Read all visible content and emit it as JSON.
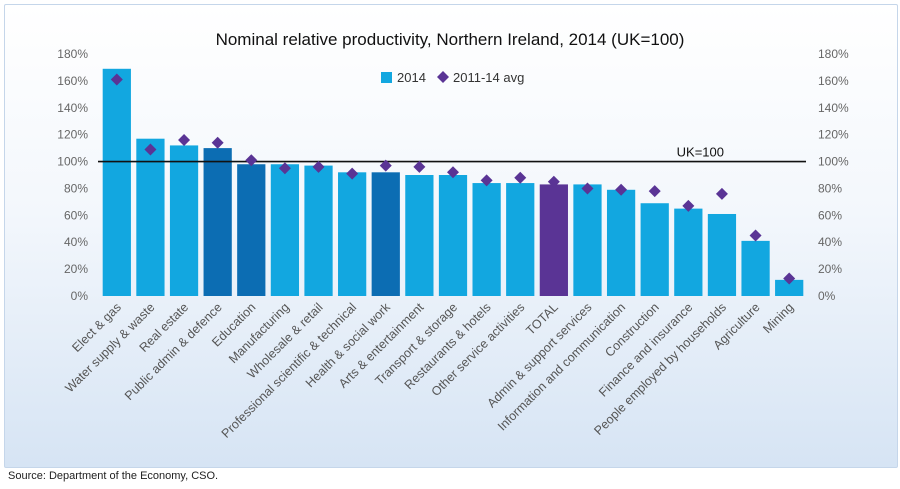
{
  "chart_data": {
    "type": "bar",
    "title": "Nominal relative productivity, Northern Ireland, 2014 (UK=100)",
    "categories": [
      "Elect & gas",
      "Water supply & waste",
      "Real estate",
      "Public admin & defence",
      "Education",
      "Manufacturing",
      "Wholesale & retail",
      "Professional scientific & technical",
      "Health & social work",
      "Arts & entertainment",
      "Transport & storage",
      "Restaurants & hotels",
      "Other service activities",
      "TOTAL",
      "Admin & support services",
      "Information and communication",
      "Construction",
      "Finance and insurance",
      "People employed by households",
      "Agriculture",
      "Mining"
    ],
    "series": [
      {
        "name": "2014",
        "kind": "bar",
        "values": [
          169,
          117,
          112,
          110,
          98,
          98,
          97,
          92,
          92,
          90,
          90,
          84,
          84,
          83,
          83,
          79,
          69,
          65,
          61,
          41,
          12
        ]
      },
      {
        "name": "2011-14 avg",
        "kind": "marker",
        "values": [
          161,
          109,
          116,
          114,
          101,
          95,
          96,
          91,
          97,
          96,
          92,
          86,
          88,
          85,
          80,
          79,
          78,
          67,
          76,
          45,
          13
        ]
      }
    ],
    "bar_colors": [
      "#12a7e0",
      "#12a7e0",
      "#12a7e0",
      "#0c6db3",
      "#0c6db3",
      "#12a7e0",
      "#12a7e0",
      "#12a7e0",
      "#0c6db3",
      "#12a7e0",
      "#12a7e0",
      "#12a7e0",
      "#12a7e0",
      "#5a3495",
      "#12a7e0",
      "#12a7e0",
      "#12a7e0",
      "#12a7e0",
      "#12a7e0",
      "#12a7e0",
      "#12a7e0"
    ],
    "marker_color": "#5a3495",
    "legend_bar_color": "#12a7e0",
    "ylim": [
      0,
      180
    ],
    "yticks": [
      "0%",
      "20%",
      "40%",
      "60%",
      "80%",
      "100%",
      "120%",
      "140%",
      "160%",
      "180%"
    ],
    "reference_line": {
      "value": 100,
      "label": "UK=100"
    },
    "legend_position": "top-center",
    "dual_y_axis": true
  },
  "source": "Source: Department of the Economy, CSO."
}
